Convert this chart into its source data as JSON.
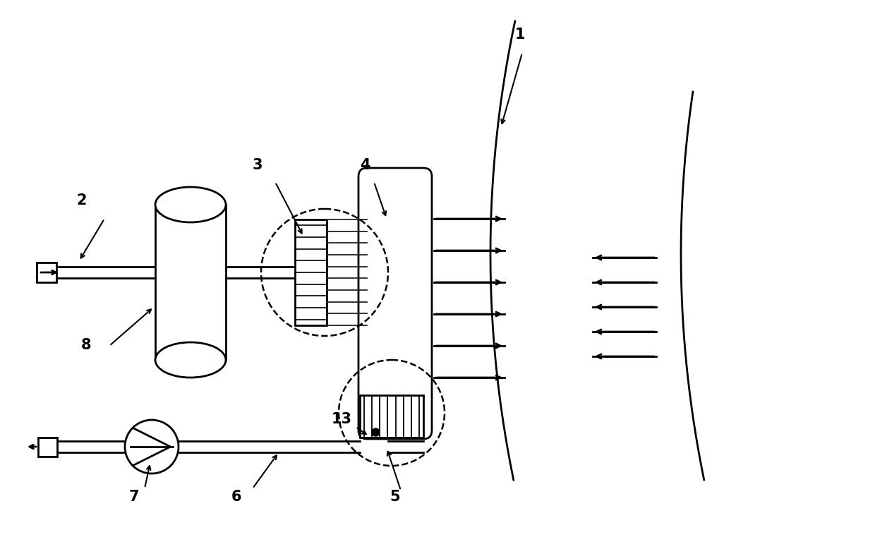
{
  "bg_color": "#ffffff",
  "line_color": "#000000",
  "figsize": [
    12.4,
    7.85
  ],
  "dpi": 100
}
